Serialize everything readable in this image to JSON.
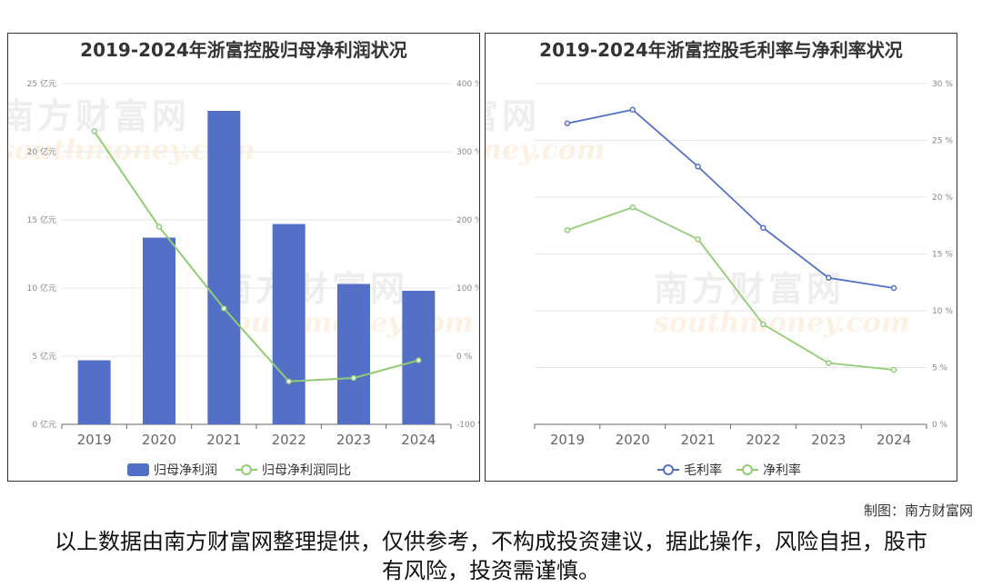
{
  "credit": "制图：南方财富网",
  "disclaimer": "以上数据由南方财富网整理提供，仅供参考，不构成投资建议，据此操作，风险自担，股市有风险，投资需谨慎。",
  "watermark": {
    "cn": "南方财富网",
    "en": "southmoney.com"
  },
  "colors": {
    "bar": "#5470c6",
    "line_green": "#91cc75",
    "line_blue": "#5470c6"
  },
  "chart_data": [
    {
      "type": "bar",
      "title": "2019-2024年浙富控股归母净利润状况",
      "categories": [
        "2019",
        "2020",
        "2021",
        "2022",
        "2023",
        "2024"
      ],
      "series": [
        {
          "name": "归母净利润",
          "type": "bar",
          "axis": "left",
          "values": [
            4.7,
            13.7,
            23.0,
            14.7,
            10.3,
            9.8
          ]
        },
        {
          "name": "归母净利润同比",
          "type": "line",
          "axis": "right",
          "values": [
            330,
            190,
            70,
            -37,
            -32,
            -6
          ]
        }
      ],
      "y_left": {
        "min": 0,
        "max": 25,
        "ticks": [
          "0 亿元",
          "5 亿元",
          "10 亿元",
          "15 亿元",
          "20 亿元",
          "25 亿元"
        ]
      },
      "y_right": {
        "min": -100,
        "max": 400,
        "ticks": [
          "-100 %",
          "0 %",
          "100 %",
          "200 %",
          "300 %",
          "400 %"
        ]
      },
      "legend": "bottom-center",
      "grid": true
    },
    {
      "type": "line",
      "title": "2019-2024年浙富控股毛利率与净利率状况",
      "categories": [
        "2019",
        "2020",
        "2021",
        "2022",
        "2023",
        "2024"
      ],
      "series": [
        {
          "name": "毛利率",
          "values": [
            26.5,
            27.7,
            22.7,
            17.3,
            12.9,
            12.0
          ]
        },
        {
          "name": "净利率",
          "values": [
            17.1,
            19.1,
            16.3,
            8.8,
            5.4,
            4.8
          ]
        }
      ],
      "y_right": {
        "min": 0,
        "max": 30,
        "ticks": [
          "0 %",
          "5 %",
          "10 %",
          "15 %",
          "20 %",
          "25 %",
          "30 %"
        ]
      },
      "legend": "bottom-center",
      "grid": true
    }
  ]
}
